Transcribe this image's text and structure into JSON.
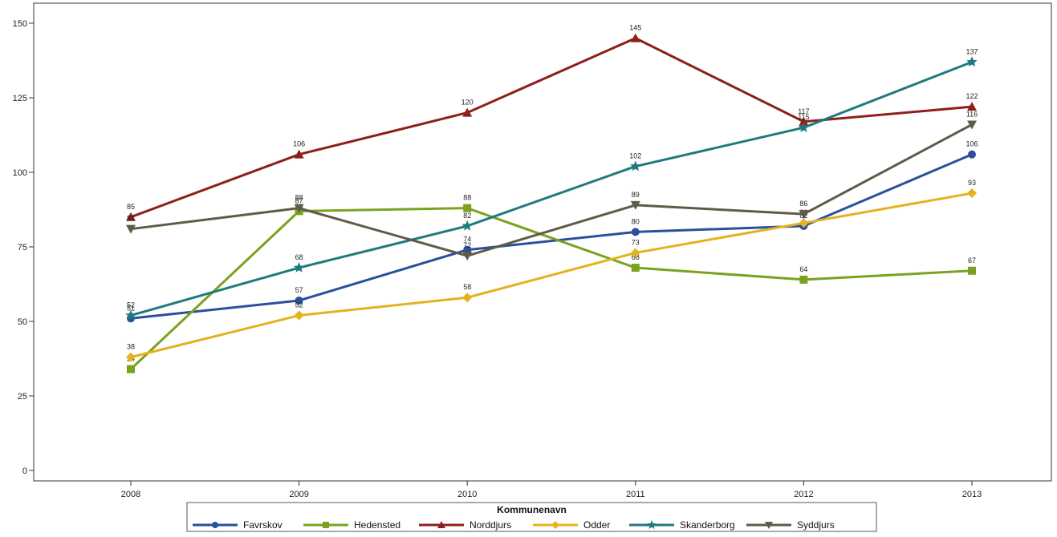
{
  "chart_data": {
    "type": "line",
    "title": "",
    "xlabel": "",
    "ylabel": "",
    "categories": [
      "2008",
      "2009",
      "2010",
      "2011",
      "2012",
      "2013"
    ],
    "ylim": [
      0,
      150
    ],
    "yticks": [
      0,
      25,
      50,
      75,
      100,
      125,
      150
    ],
    "grid": false,
    "legend": {
      "title": "Kommunenavn",
      "placement": "bottom"
    },
    "series": [
      {
        "name": "Favrskov",
        "values": [
          51,
          57,
          74,
          80,
          82,
          106
        ],
        "color": "#2a4f9c",
        "marker": "circle"
      },
      {
        "name": "Hedensted",
        "values": [
          34,
          87,
          88,
          68,
          64,
          67
        ],
        "color": "#7aa21f",
        "marker": "square"
      },
      {
        "name": "Norddjurs",
        "values": [
          85,
          106,
          120,
          145,
          117,
          122
        ],
        "color": "#8e1f1a",
        "marker": "triangle-up"
      },
      {
        "name": "Odder",
        "values": [
          38,
          52,
          58,
          73,
          83,
          93
        ],
        "color": "#e3b21f",
        "marker": "diamond"
      },
      {
        "name": "Skanderborg",
        "values": [
          52,
          68,
          82,
          102,
          115,
          137
        ],
        "color": "#1f7a80",
        "marker": "star"
      },
      {
        "name": "Syddjurs",
        "values": [
          81,
          88,
          72,
          89,
          86,
          116
        ],
        "color": "#5e5b48",
        "marker": "triangle-down"
      }
    ]
  }
}
